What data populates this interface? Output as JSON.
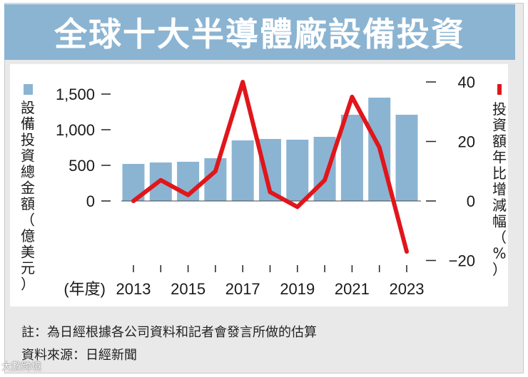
{
  "title": "全球十大半導體廠設備投資",
  "colors": {
    "bar": "#8bb4d2",
    "line": "#e0161b",
    "header": "#8bb4d2",
    "background": "#e9e9e9"
  },
  "chart_data": {
    "type": "bar+line",
    "x_unit_label": "(年度)",
    "x": [
      2013,
      2014,
      2015,
      2016,
      2017,
      2018,
      2019,
      2020,
      2021,
      2022,
      2023
    ],
    "x_tick_labels": [
      "2013",
      "2015",
      "2017",
      "2019",
      "2021",
      "2023"
    ],
    "series": [
      {
        "name": "設備投資總金額（億美元）",
        "type": "bar",
        "axis": "left",
        "values": [
          520,
          540,
          550,
          600,
          850,
          870,
          860,
          900,
          1210,
          1450,
          1210
        ]
      },
      {
        "name": "投資額年比增減幅（%）",
        "type": "line",
        "axis": "right",
        "values": [
          0,
          7,
          2,
          10,
          40,
          3,
          -2,
          7,
          35,
          18,
          -17
        ]
      }
    ],
    "left_axis": {
      "label": "設備投資總金額（億美元）",
      "range": [
        0,
        1600
      ],
      "ticks": [
        0,
        500,
        1000,
        1500
      ],
      "tick_labels": [
        "0",
        "500",
        "1,000",
        "1,500"
      ]
    },
    "right_axis": {
      "label": "投資額年比增減幅（%）",
      "range": [
        -20,
        40
      ],
      "ticks": [
        -20,
        0,
        20,
        40
      ],
      "tick_labels": [
        "−20",
        "0",
        "20",
        "40"
      ]
    },
    "legend": "vertical-axis-labels",
    "grid": false
  },
  "legend_left": "設備投資總金額（億美元）",
  "legend_right": "投資額年比增減幅（%）",
  "note": "註：為日經根據各公司資料和記者會發言所做的估算",
  "source": "資料來源：日經新聞",
  "watermark": "大數跨境"
}
